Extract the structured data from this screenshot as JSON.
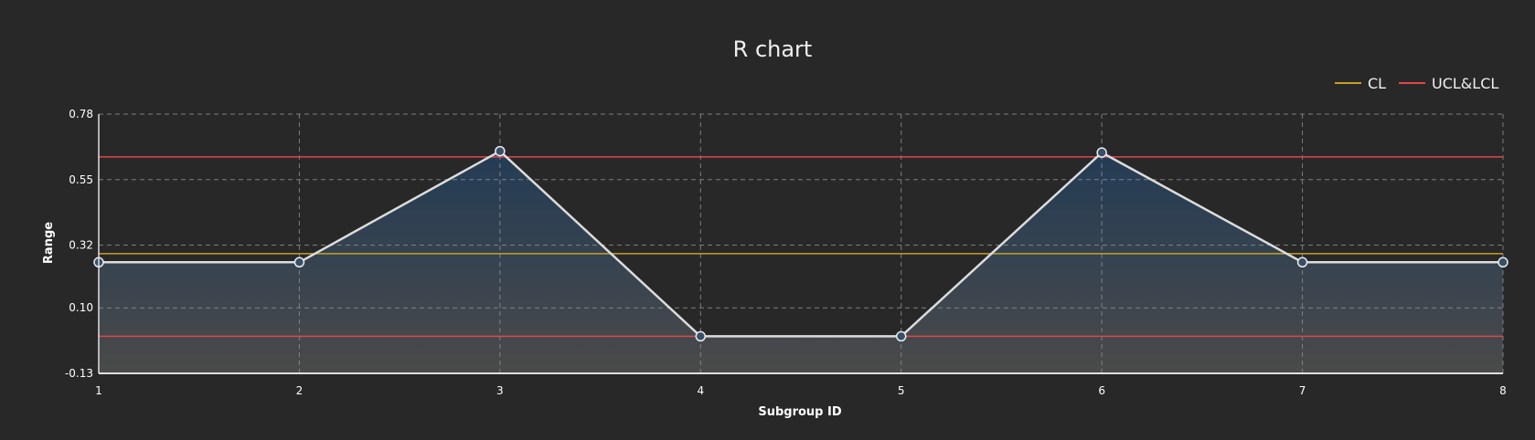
{
  "chart_data": {
    "type": "line",
    "title": "R chart",
    "xlabel": "Subgroup ID",
    "ylabel": "Range",
    "x": [
      1,
      2,
      3,
      4,
      5,
      6,
      7,
      8
    ],
    "x_ticks": [
      "1",
      "2",
      "3",
      "4",
      "5",
      "6",
      "7",
      "8"
    ],
    "y_ticks": [
      "0.78",
      "0.55",
      "0.32",
      "0.10",
      "-0.13"
    ],
    "y_tick_values": [
      0.78,
      0.55,
      0.32,
      0.1,
      -0.13
    ],
    "xlim": [
      1,
      8
    ],
    "ylim": [
      -0.13,
      0.78
    ],
    "series": [
      {
        "values": [
          0.26,
          0.26,
          0.65,
          0.0,
          0.0,
          0.645,
          0.26,
          0.26
        ],
        "color": "#dcdcdc"
      }
    ],
    "lines": [
      {
        "name": "CL",
        "value": 0.29,
        "color": "#c8a028"
      },
      {
        "name": "UCL&LCL",
        "value": 0.63,
        "color": "#e04848"
      },
      {
        "name": "UCL&LCL",
        "value": 0.0,
        "color": "#e04848"
      }
    ],
    "legend": {
      "position": "top-right",
      "items": [
        {
          "label": "CL",
          "color": "#c8a028"
        },
        {
          "label": "UCL&LCL",
          "color": "#e04848"
        }
      ]
    },
    "grid": true,
    "area_fill": {
      "top_color": "#233c55",
      "bottom_color": "#4a4a4a"
    }
  }
}
